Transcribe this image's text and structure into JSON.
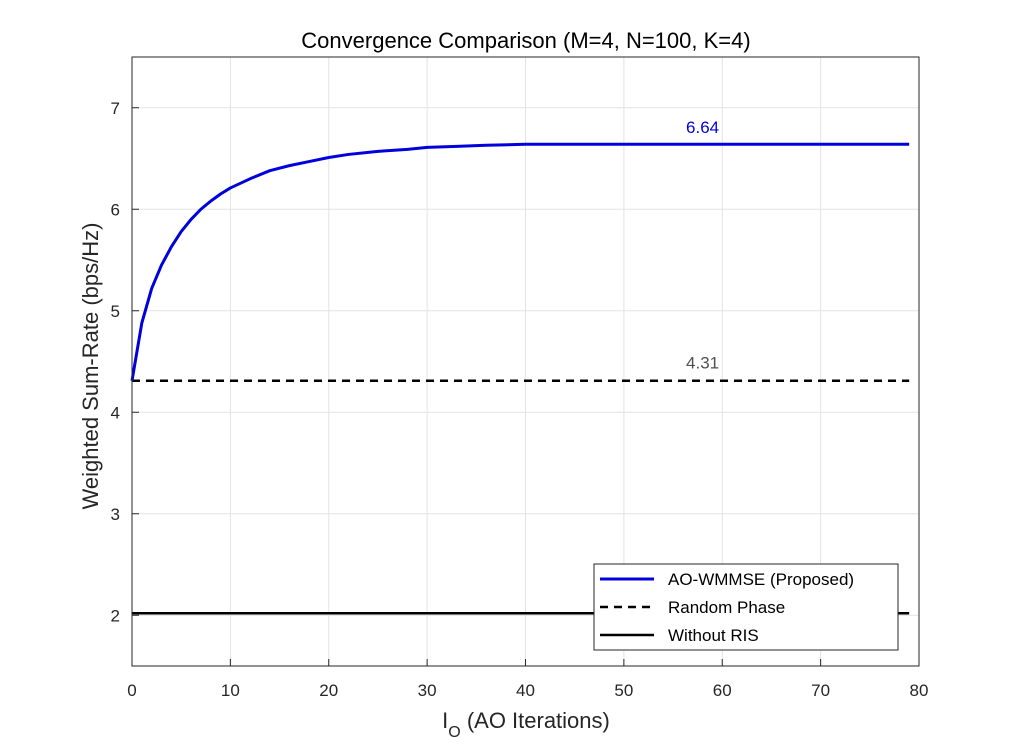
{
  "chart_data": {
    "type": "line",
    "title": "Convergence Comparison (M=4, N=100, K=4)",
    "xlabel_main": "I",
    "xlabel_sub": "O",
    "xlabel_rest": " (AO Iterations)",
    "ylabel": "Weighted Sum-Rate (bps/Hz)",
    "xlim": [
      0,
      80
    ],
    "ylim": [
      1.5,
      7.5
    ],
    "xticks": [
      "0",
      "10",
      "20",
      "30",
      "40",
      "50",
      "60",
      "70",
      "80"
    ],
    "yticks": [
      "2",
      "3",
      "4",
      "5",
      "6",
      "7"
    ],
    "grid": true,
    "legend_position": "bottom-right",
    "series": [
      {
        "name": "AO-WMMSE (Proposed)",
        "color": "#0000dd",
        "style": "solid",
        "x": [
          0,
          1,
          2,
          3,
          4,
          5,
          6,
          7,
          8,
          9,
          10,
          12,
          14,
          16,
          18,
          20,
          22,
          25,
          28,
          30,
          33,
          36,
          40,
          45,
          50,
          55,
          60,
          65,
          70,
          75,
          79
        ],
        "y": [
          4.31,
          4.88,
          5.22,
          5.45,
          5.63,
          5.78,
          5.9,
          6.0,
          6.08,
          6.15,
          6.21,
          6.3,
          6.38,
          6.43,
          6.47,
          6.51,
          6.54,
          6.57,
          6.59,
          6.61,
          6.62,
          6.63,
          6.64,
          6.64,
          6.64,
          6.64,
          6.64,
          6.64,
          6.64,
          6.64,
          6.64
        ]
      },
      {
        "name": "Random Phase",
        "color": "#000000",
        "style": "dashed",
        "x": [
          0,
          79
        ],
        "y": [
          4.31,
          4.31
        ]
      },
      {
        "name": "Without RIS",
        "color": "#000000",
        "style": "solid",
        "x": [
          0,
          79
        ],
        "y": [
          2.02,
          2.02
        ]
      }
    ],
    "annotations": [
      {
        "text": "6.64",
        "x": 58,
        "y": 6.75,
        "color": "#0000dd"
      },
      {
        "text": "4.31",
        "x": 58,
        "y": 4.43,
        "color": "#505050"
      }
    ]
  }
}
